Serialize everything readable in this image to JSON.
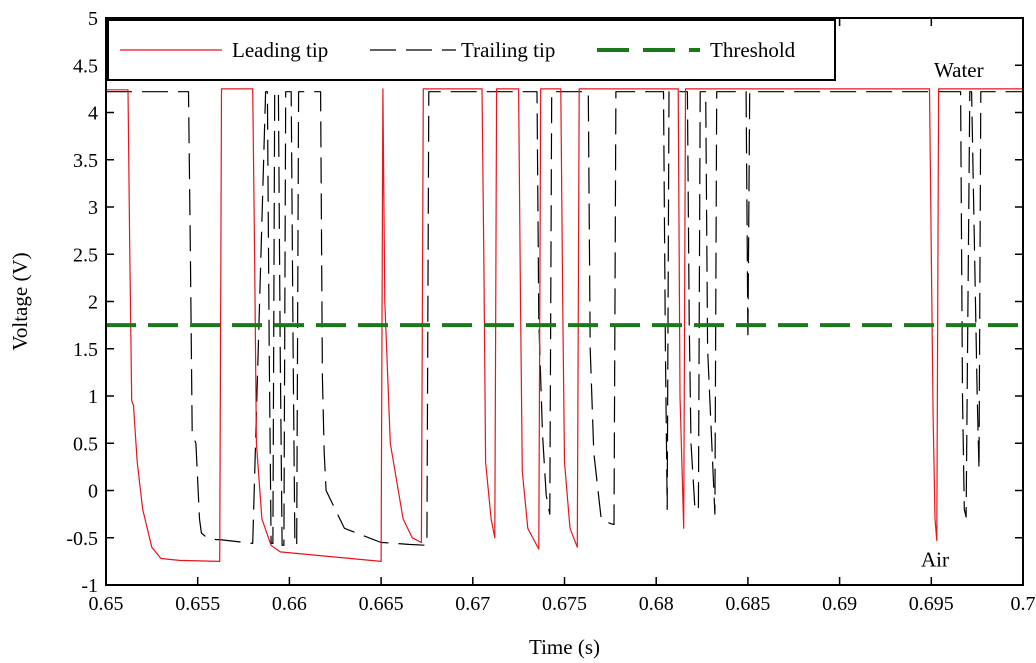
{
  "chart_data": {
    "type": "line",
    "xlabel": "Time (s)",
    "ylabel": "Voltage (V)",
    "xlim": [
      0.65,
      0.7
    ],
    "ylim": [
      -1,
      5
    ],
    "xticks": [
      0.65,
      0.655,
      0.66,
      0.665,
      0.67,
      0.675,
      0.68,
      0.685,
      0.69,
      0.695,
      0.7
    ],
    "xtick_labels": [
      "0.65",
      "0.655",
      "0.66",
      "0.665",
      "0.67",
      "0.675",
      "0.68",
      "0.685",
      "0.69",
      "0.695",
      "0.7"
    ],
    "yticks": [
      -1,
      -0.5,
      0,
      0.5,
      1,
      1.5,
      2,
      2.5,
      3,
      3.5,
      4,
      4.5,
      5
    ],
    "ytick_labels": [
      "-1",
      "-0.5",
      "0",
      "0.5",
      "1",
      "1.5",
      "2",
      "2.5",
      "3",
      "3.5",
      "4",
      "4.5",
      "5"
    ],
    "grid": false,
    "legend_position": "top-left",
    "annotations": [
      {
        "text": "Water",
        "x": 0.6965,
        "y": 4.45
      },
      {
        "text": "Air",
        "x": 0.6952,
        "y": -0.73
      }
    ],
    "series": [
      {
        "name": "Leading tip",
        "color": "#e8141c",
        "dash": "solid",
        "x": [
          0.65,
          0.6512,
          0.6513,
          0.6514,
          0.6515,
          0.6517,
          0.652,
          0.6525,
          0.653,
          0.654,
          0.6562,
          0.6563,
          0.658,
          0.6581,
          0.6582,
          0.6585,
          0.659,
          0.6595,
          0.665,
          0.6651,
          0.6652,
          0.6655,
          0.6662,
          0.6667,
          0.6672,
          0.6673,
          0.6705,
          0.6706,
          0.6707,
          0.671,
          0.6712,
          0.6713,
          0.6725,
          0.6726,
          0.6727,
          0.673,
          0.6736,
          0.6737,
          0.6748,
          0.6749,
          0.675,
          0.6753,
          0.6757,
          0.6758,
          0.6812,
          0.6813,
          0.6815,
          0.6816,
          0.6949,
          0.695,
          0.6951,
          0.6952,
          0.6953,
          0.6954,
          0.7
        ],
        "y": [
          4.24,
          4.24,
          2.5,
          0.95,
          0.9,
          0.3,
          -0.2,
          -0.6,
          -0.72,
          -0.74,
          -0.75,
          4.25,
          4.25,
          2.5,
          0.5,
          -0.3,
          -0.58,
          -0.65,
          -0.75,
          4.25,
          2.0,
          0.5,
          -0.3,
          -0.5,
          -0.55,
          4.25,
          4.25,
          2.5,
          0.3,
          -0.3,
          -0.5,
          4.25,
          4.25,
          2.0,
          0.2,
          -0.4,
          -0.62,
          4.25,
          4.25,
          2.0,
          0.3,
          -0.4,
          -0.6,
          4.25,
          4.25,
          1.0,
          -0.4,
          4.25,
          4.25,
          2.5,
          0.8,
          -0.3,
          -0.53,
          4.25,
          4.25
        ]
      },
      {
        "name": "Trailing tip",
        "color": "#000000",
        "dash": "long-dash",
        "x": [
          0.65,
          0.6545,
          0.6546,
          0.6547,
          0.6549,
          0.6551,
          0.6552,
          0.6555,
          0.656,
          0.6562,
          0.658,
          0.6587,
          0.6588,
          0.6589,
          0.659,
          0.6591,
          0.6592,
          0.6593,
          0.6594,
          0.6595,
          0.6596,
          0.6597,
          0.6598,
          0.6599,
          0.66,
          0.6601,
          0.6602,
          0.6603,
          0.6604,
          0.6605,
          0.6606,
          0.6607,
          0.6608,
          0.6609,
          0.661,
          0.6611,
          0.6612,
          0.6613,
          0.6614,
          0.6615,
          0.6616,
          0.6617,
          0.6618,
          0.6619,
          0.662,
          0.663,
          0.665,
          0.6651,
          0.6665,
          0.6675,
          0.6676,
          0.6677,
          0.6679,
          0.6735,
          0.6736,
          0.6738,
          0.674,
          0.6742,
          0.6743,
          0.6763,
          0.6764,
          0.6766,
          0.677,
          0.6775,
          0.6777,
          0.6778,
          0.6804,
          0.6805,
          0.6806,
          0.6807,
          0.6808,
          0.6817,
          0.6818,
          0.6819,
          0.6821,
          0.6823,
          0.6824,
          0.6827,
          0.6828,
          0.6832,
          0.6833,
          0.6849,
          0.685,
          0.6851,
          0.6966,
          0.6967,
          0.6968,
          0.6969,
          0.6971,
          0.6972,
          0.6975,
          0.6976,
          0.6977,
          0.7
        ],
        "y": [
          4.22,
          4.22,
          2.5,
          0.6,
          0.5,
          -0.3,
          -0.45,
          -0.5,
          -0.52,
          -0.52,
          -0.56,
          4.22,
          4.22,
          1.5,
          -0.56,
          -0.56,
          4.22,
          4.22,
          4.22,
          1.5,
          -0.58,
          -0.58,
          4.22,
          4.22,
          4.22,
          4.22,
          1.5,
          -0.58,
          -0.58,
          4.22,
          4.22,
          4.22,
          4.22,
          4.22,
          4.22,
          4.22,
          4.22,
          4.22,
          4.22,
          4.22,
          4.22,
          4.22,
          1.2,
          0.4,
          0.0,
          -0.4,
          -0.55,
          -0.55,
          -0.57,
          -0.58,
          4.22,
          4.22,
          4.22,
          4.22,
          1.8,
          0.6,
          -0.05,
          -0.25,
          4.22,
          4.22,
          1.5,
          0.4,
          -0.3,
          -0.35,
          -0.36,
          4.22,
          4.22,
          1.5,
          -0.2,
          4.22,
          4.22,
          4.22,
          1.8,
          0.5,
          -0.15,
          -0.22,
          4.22,
          4.22,
          1.5,
          -0.25,
          4.22,
          4.22,
          1.6,
          4.22,
          4.22,
          1.0,
          -0.2,
          -0.28,
          4.22,
          4.22,
          1.0,
          0.22,
          4.22,
          4.22
        ]
      },
      {
        "name": "Threshold",
        "color": "#1a7a1a",
        "dash": "dash",
        "x": [
          0.65,
          0.7
        ],
        "y": [
          1.75,
          1.75
        ]
      }
    ]
  }
}
